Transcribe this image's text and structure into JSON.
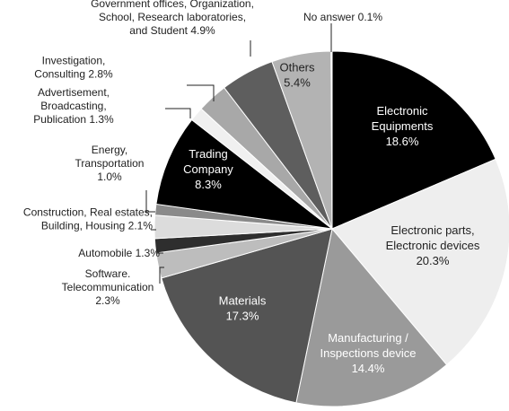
{
  "chart_data": {
    "type": "pie",
    "start_angle_deg": 0,
    "direction": "clockwise",
    "slices": [
      {
        "label_lines": [
          "Electronic",
          "Equipments",
          "18.6%"
        ],
        "value": 18.6,
        "color": "#000000",
        "text_color": "#ffffff",
        "label_pos": "inside"
      },
      {
        "label_lines": [
          "Electronic parts,",
          "Electronic devices",
          "20.3%"
        ],
        "value": 20.3,
        "color": "#eeeeee",
        "text_color": "#222222",
        "label_pos": "inside"
      },
      {
        "label_lines": [
          "Manufacturing /",
          "Inspections device",
          "14.4%"
        ],
        "value": 14.4,
        "color": "#9a9a9a",
        "text_color": "#ffffff",
        "label_pos": "inside"
      },
      {
        "label_lines": [
          "Materials",
          "17.3%"
        ],
        "value": 17.3,
        "color": "#545454",
        "text_color": "#ffffff",
        "label_pos": "inside"
      },
      {
        "label_lines": [
          "Software.",
          "Telecommunication",
          "2.3%"
        ],
        "value": 2.3,
        "color": "#bdbdbd",
        "text_color": "#222222",
        "label_pos": "outside"
      },
      {
        "label_lines": [
          "Automobile  1.3%"
        ],
        "value": 1.3,
        "color": "#2e2e2e",
        "text_color": "#222222",
        "label_pos": "outside"
      },
      {
        "label_lines": [
          "Construction, Real estates,",
          "Building, Housing  2.1%"
        ],
        "value": 2.1,
        "color": "#dcdcdc",
        "text_color": "#222222",
        "label_pos": "outside"
      },
      {
        "label_lines": [
          "Energy,",
          "Transportation",
          "1.0%"
        ],
        "value": 1.0,
        "color": "#8a8a8a",
        "text_color": "#222222",
        "label_pos": "outside"
      },
      {
        "label_lines": [
          "Trading",
          "Company",
          "8.3%"
        ],
        "value": 8.3,
        "color": "#000000",
        "text_color": "#ffffff",
        "label_pos": "inside"
      },
      {
        "label_lines": [
          "Advertisement,",
          "Broadcasting,",
          "Publication  1.3%"
        ],
        "value": 1.3,
        "color": "#f0f0f0",
        "text_color": "#222222",
        "label_pos": "outside"
      },
      {
        "label_lines": [
          "Investigation,",
          "Consulting  2.8%"
        ],
        "value": 2.8,
        "color": "#a8a8a8",
        "text_color": "#222222",
        "label_pos": "outside"
      },
      {
        "label_lines": [
          "Government offices, Organization,",
          "School, Research laboratories,",
          "and Student  4.9%"
        ],
        "value": 4.9,
        "color": "#5e5e5e",
        "text_color": "#222222",
        "label_pos": "outside"
      },
      {
        "label_lines": [
          "Others",
          "5.4%"
        ],
        "value": 5.4,
        "color": "#b3b3b3",
        "text_color": "#222222",
        "label_pos": "inside"
      },
      {
        "label_lines": [
          "No answer  0.1%"
        ],
        "value": 0.1,
        "color": "#ffffff",
        "text_color": "#222222",
        "label_pos": "outside"
      }
    ]
  }
}
